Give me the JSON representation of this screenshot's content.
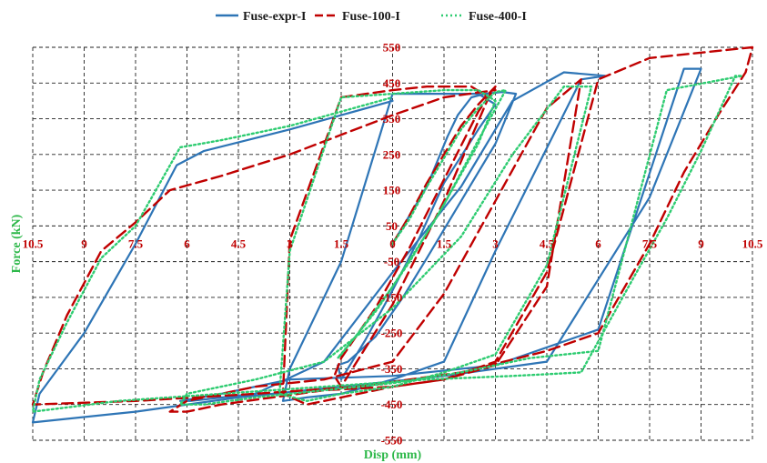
{
  "chart_data": {
    "type": "line",
    "title": "",
    "xlabel": "Disp (mm)",
    "ylabel": "Force (kN)",
    "xlim": [
      -10.5,
      10.5
    ],
    "ylim": [
      -550,
      550
    ],
    "xticks": [
      -10.5,
      -9,
      -7.5,
      -6,
      -4.5,
      -3,
      -1.5,
      0,
      1.5,
      3,
      4.5,
      6,
      7.5,
      9,
      10.5
    ],
    "xtick_labels": [
      "10.5",
      "9",
      "7.5",
      "6",
      "4.5",
      "3",
      "1.5",
      "0",
      "1.5",
      "3",
      "4.5",
      "6",
      "7.5",
      "9",
      "10.5"
    ],
    "yticks": [
      550,
      450,
      350,
      250,
      150,
      50,
      -50,
      -150,
      -250,
      -350,
      -450,
      -550
    ],
    "ytick_labels": [
      "550",
      "450",
      "350",
      "250",
      "150",
      "50",
      "-50",
      "-150",
      "-250",
      "-350",
      "-450",
      "-550"
    ],
    "grid": true,
    "legend_position": "top",
    "series": [
      {
        "name": "Fuse-expr-I",
        "color": "#2e75b6",
        "style": "solid",
        "x": [
          0,
          0.5,
          1.0,
          1.3,
          1.6,
          1.9,
          2.3,
          2.7,
          3.2,
          3.6,
          3.0,
          2.0,
          1.0,
          0.3,
          -0.5,
          -1.3,
          -1.6,
          -1.5,
          -0.8,
          0,
          0.8,
          1.5,
          2.5,
          3.0,
          2.5,
          1.5,
          0,
          -1.5,
          -3.0,
          -3.2,
          -2.5,
          -1.5,
          0,
          1.5,
          3.0,
          5.5,
          6.2,
          5.0,
          3.5,
          2.0,
          0,
          -2,
          -4,
          -5.9,
          -6.2,
          -5.0,
          -3,
          0,
          3,
          6,
          8.5,
          9.0,
          7.5,
          4.5,
          1.5,
          -1.5,
          -4.5,
          -7.5,
          -10.5,
          -10.3,
          -9,
          -7.5,
          -6.3,
          -5.5,
          -3,
          0
        ],
        "y": [
          0,
          80,
          160,
          230,
          300,
          360,
          410,
          420,
          425,
          420,
          280,
          120,
          -40,
          -150,
          -260,
          -330,
          -340,
          -380,
          -270,
          -130,
          20,
          170,
          320,
          390,
          420,
          420,
          420,
          -50,
          -350,
          -440,
          -430,
          -420,
          -380,
          -330,
          -20,
          460,
          470,
          480,
          400,
          160,
          -80,
          -330,
          -420,
          -440,
          -440,
          -420,
          -380,
          -370,
          -340,
          -240,
          490,
          490,
          130,
          -330,
          -370,
          -400,
          -430,
          -470,
          -500,
          -420,
          -250,
          0,
          220,
          260,
          320,
          400
        ]
      },
      {
        "name": "Fuse-100-I",
        "color": "#c00000",
        "style": "dashed",
        "x": [
          0,
          0.5,
          1.0,
          1.5,
          2.0,
          2.5,
          3.0,
          2.5,
          1.5,
          0.5,
          -0.5,
          -1.5,
          -1.7,
          -1.5,
          0,
          1.5,
          2.8,
          2.3,
          1.0,
          0,
          -1.5,
          -3,
          -3.2,
          -2.5,
          -1.5,
          0,
          1.5,
          3.0,
          4.5,
          5.5,
          4.5,
          3.0,
          1.5,
          0,
          -2,
          -4,
          -6,
          -6.5,
          -6.0,
          -5.0,
          -3.5,
          -2.0,
          0,
          1.5,
          3.0,
          4.5,
          6.0,
          7.5,
          10.5,
          10.3,
          9.5,
          8.5,
          7.5,
          6.0,
          4.5,
          2.0,
          -1,
          -4,
          -7.5,
          -10.5,
          -10.2,
          -9.5,
          -8.5,
          -7.5,
          -6.5,
          -5,
          -3,
          0,
          1.5,
          3.0
        ],
        "y": [
          0,
          80,
          170,
          250,
          330,
          390,
          440,
          370,
          180,
          -10,
          -180,
          -320,
          -370,
          -400,
          -170,
          120,
          410,
          440,
          440,
          430,
          410,
          10,
          -420,
          -450,
          -430,
          -400,
          -380,
          -340,
          -120,
          460,
          380,
          120,
          -140,
          -330,
          -380,
          -400,
          -440,
          -470,
          -470,
          -450,
          -430,
          -410,
          -400,
          -380,
          -330,
          -80,
          460,
          520,
          550,
          480,
          360,
          200,
          0,
          -250,
          -300,
          -360,
          -400,
          -420,
          -440,
          -450,
          -360,
          -200,
          -20,
          60,
          150,
          190,
          250,
          360,
          410,
          430
        ]
      },
      {
        "name": "Fuse-400-I",
        "color": "#2ecc71",
        "style": "dotted",
        "x": [
          0,
          0.5,
          1.0,
          1.5,
          2.0,
          2.5,
          3.0,
          3.3,
          2.5,
          1.5,
          0.5,
          -0.5,
          -1.5,
          -1.6,
          -1.0,
          0,
          1.2,
          2.5,
          3.0,
          2.5,
          1.5,
          0,
          -1.5,
          -3.0,
          -3.3,
          -2.5,
          -1.5,
          0,
          1.5,
          3.0,
          4.5,
          5.8,
          5.0,
          3.5,
          2.0,
          0,
          -2,
          -4,
          -6,
          -6.2,
          -5.5,
          -4,
          -2,
          0,
          2,
          4,
          6,
          8,
          10.2,
          10.0,
          9.0,
          8.0,
          7.0,
          5.5,
          3.5,
          1.0,
          -2,
          -5,
          -8,
          -10.5,
          -10.3,
          -9.5,
          -8.5,
          -7.5,
          -6.2,
          -5,
          -3,
          0
        ],
        "y": [
          0,
          70,
          160,
          240,
          320,
          380,
          425,
          430,
          290,
          110,
          -50,
          -190,
          -310,
          -320,
          -250,
          -120,
          60,
          280,
          400,
          430,
          430,
          420,
          410,
          -20,
          -420,
          -440,
          -420,
          -400,
          -360,
          -310,
          -60,
          440,
          440,
          250,
          20,
          -180,
          -330,
          -380,
          -420,
          -450,
          -450,
          -430,
          -410,
          -390,
          -360,
          -320,
          -300,
          430,
          470,
          470,
          260,
          70,
          -100,
          -360,
          -370,
          -380,
          -400,
          -420,
          -440,
          -470,
          -380,
          -220,
          -40,
          50,
          270,
          290,
          330,
          410
        ]
      }
    ]
  }
}
